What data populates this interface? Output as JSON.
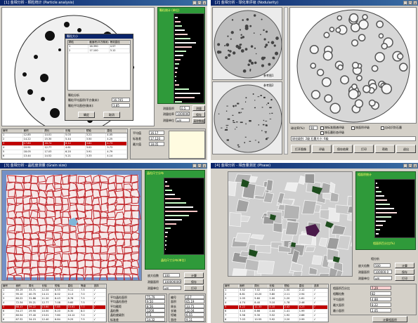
{
  "q1": {
    "title": "[1] 金相分析 - 颗粒统计 (Particle analysis)",
    "green_title": "颗粒统计 (单位)",
    "dialog": {
      "title": "颗粒大小",
      "col_a": "颗粒",
      "col_b": "截面积(平方微米)",
      "col_c": "等效直径",
      "rows": [
        [
          "1",
          "16.390",
          "4.57"
        ],
        [
          "2",
          "17.100",
          "3.12"
        ]
      ],
      "note1": "颗粒分析",
      "note2": "颗粒平均面积(平方微米):",
      "note2_val": "16.745",
      "note3": "颗粒平均直径(微米):",
      "note3_val": "3.85",
      "ok": "确定",
      "cancel": "取消"
    },
    "form": {
      "l1": "测量面积",
      "v1": "0.5",
      "l2": "测量倍率",
      "v2": "1000000.0",
      "l3": "测量单位",
      "v3": "μm",
      "b1": "测量",
      "b2": "保存",
      "b3": "清除数据"
    },
    "table": {
      "headers": [
        "编号",
        "面积",
        "周长",
        "长轴",
        "短轴",
        "直径"
      ],
      "rows": [
        [
          "1",
          "12.85",
          "14.01",
          "5.03",
          "3.21",
          "4.05"
        ],
        [
          "2",
          "14.22",
          "15.30",
          "5.44",
          "3.50",
          "4.25"
        ],
        [
          "3",
          "17.60",
          "16.74",
          "6.12",
          "3.82",
          "4.73"
        ],
        [
          "4",
          "10.91",
          "12.77",
          "4.61",
          "3.02",
          "3.73"
        ],
        [
          "5",
          "18.05",
          "17.03",
          "6.20",
          "3.91",
          "4.79"
        ],
        [
          "6",
          "13.44",
          "14.52",
          "5.21",
          "3.33",
          "4.14"
        ]
      ]
    },
    "stats": {
      "l1": "平均值",
      "v1": "16.17",
      "l2": "标准差",
      "v2": "17.120",
      "l3": "最大值",
      "v3": "18.05"
    }
  },
  "q2": {
    "title": "[2] 金相分析 - 球化率评级 (Nodularity)",
    "thumb1_label": "参考图1",
    "thumb2_label": "参考图2",
    "radio1": "按标准图谱评级",
    "radio2": "按石墨形态评级",
    "radio3": "按面积评级",
    "check1": "自动识别石墨",
    "result_label": "球化率(%):",
    "result_val": "90",
    "result_text": "球化级别: 2级  石墨大小: 6级",
    "btns": [
      "打开图像",
      "评级",
      "保存结果",
      "打印",
      "帮助",
      "退出"
    ]
  },
  "q3": {
    "title": "[3] 金相分析 - 晶粒度测量 (Grain size)",
    "green_title": "晶粒尺寸分布",
    "green_sub": "晶粒尺寸分布(单位)",
    "form": {
      "l1": "放大倍数",
      "v1": "100",
      "l2": "测量面积",
      "v2": "100000000.0",
      "l3": "测量单位",
      "v3": "μm",
      "b1": "计算",
      "b2": "保存",
      "b3": "打印"
    },
    "table": {
      "headers": [
        "编号",
        "面积",
        "周长",
        "长轴",
        "短轴",
        "直径",
        "等级",
        "选择"
      ],
      "rows": [
        [
          "1",
          "65.19",
          "33.71",
          "12.04",
          "6.55",
          "9.11",
          "7.5",
          "√"
        ],
        [
          "2",
          "95.10",
          "40.70",
          "14.11",
          "8.02",
          "11.0",
          "7.0",
          "√"
        ],
        [
          "3",
          "60.22",
          "31.86",
          "11.20",
          "6.43",
          "8.76",
          "7.5",
          "√"
        ],
        [
          "4",
          "72.34",
          "35.21",
          "12.77",
          "7.08",
          "9.60",
          "7.5",
          "√"
        ],
        [
          "5",
          "88.43",
          "39.22",
          "13.60",
          "7.85",
          "10.61",
          "7.0",
          "√"
        ],
        [
          "6",
          "54.17",
          "29.90",
          "10.50",
          "6.20",
          "8.30",
          "8.0",
          "√"
        ],
        [
          "7",
          "80.54",
          "37.40",
          "13.01",
          "7.60",
          "10.12",
          "7.0",
          "√"
        ],
        [
          "8",
          "67.32",
          "34.15",
          "12.40",
          "6.84",
          "9.25",
          "7.5",
          "√"
        ],
        [
          "9",
          "91.10",
          "40.07",
          "14.02",
          "7.95",
          "10.77",
          "7.0",
          "√"
        ]
      ]
    },
    "stats": {
      "l1": "平均晶粒面积",
      "v1": "75.79",
      "l2": "平均晶粒直径",
      "v2": "9.50",
      "l3": "平均截距",
      "v3": "8.56",
      "l4": "晶粒数",
      "v4": "1200",
      "l5": "晶粒度级别",
      "v5": "7.5",
      "l6": "标准差",
      "v6": "14.32"
    },
    "extra": [
      [
        "编号",
        "117"
      ],
      [
        "面积",
        "65.19"
      ],
      [
        "周长",
        "33.71"
      ],
      [
        "长轴",
        "12.04"
      ],
      [
        "短轴",
        "6.55"
      ],
      [
        "直径",
        "9.11"
      ]
    ]
  },
  "q4": {
    "title": "[4] 金相分析 - 相含量测定 (Phase)",
    "green_title": "相面积统计",
    "green_sub": "相面积百分比(%)",
    "form": {
      "l1": "放大倍数",
      "v1": "500",
      "l2": "测量面积",
      "v2": "100000.0",
      "l3": "测量单位",
      "v3": "μm",
      "b1": "计算",
      "b2": "保存",
      "b3": "打印"
    },
    "section": "相分析",
    "table": {
      "headers": [
        "编号",
        "面积",
        "周长",
        "长轴",
        "短轴",
        "直径",
        "选择"
      ],
      "rows": [
        [
          "1",
          "3.52",
          "7.02",
          "2.61",
          "1.50",
          "2.12",
          "√"
        ],
        [
          "2",
          "6.81",
          "10.20",
          "3.80",
          "2.11",
          "2.94",
          "√"
        ],
        [
          "3",
          "2.05",
          "5.60",
          "2.00",
          "1.20",
          "1.61",
          "√"
        ],
        [
          "4",
          "4.74",
          "8.40",
          "3.10",
          "1.78",
          "2.46",
          "√"
        ],
        [
          "5",
          "8.22",
          "11.33",
          "4.10",
          "2.42",
          "3.23",
          "√"
        ],
        [
          "6",
          "3.10",
          "6.66",
          "2.44",
          "1.41",
          "1.99",
          "√"
        ],
        [
          "7",
          "5.56",
          "9.30",
          "3.52",
          "1.92",
          "2.66",
          "√"
        ],
        [
          "8",
          "7.03",
          "10.55",
          "3.92",
          "2.20",
          "2.99",
          "√"
        ],
        [
          "9",
          "2.88",
          "6.30",
          "2.33",
          "1.33",
          "1.91",
          "√"
        ]
      ]
    },
    "stats": {
      "l1": "相面积百分比",
      "v1": "7.29",
      "l2": "相颗粒数",
      "v2": "82",
      "l3": "平均面积",
      "v3": "4.88",
      "l4": "最大面积",
      "v4": "8.22",
      "l5": "最小面积",
      "v5": "2.05"
    },
    "bottom_btn": "计算相面积"
  }
}
